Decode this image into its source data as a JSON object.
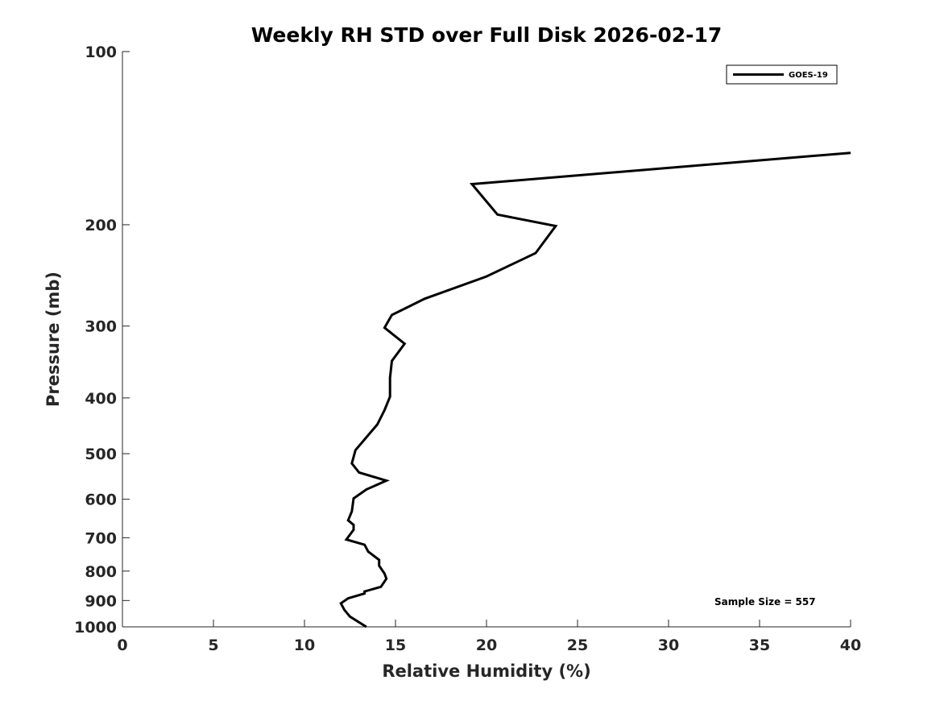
{
  "chart_data": {
    "type": "line",
    "title": "Weekly RH STD over Full Disk 2026-02-17",
    "xlabel": "Relative Humidity (%)",
    "ylabel": "Pressure (mb)",
    "xlim": [
      0,
      40
    ],
    "ylim": [
      100,
      1000
    ],
    "yscale": "log",
    "y_reversed": true,
    "grid": false,
    "legend_position": "top-right",
    "xticks": [
      "0",
      "5",
      "10",
      "15",
      "20",
      "25",
      "30",
      "35",
      "40"
    ],
    "yticks": [
      "100",
      "200",
      "300",
      "400",
      "500",
      "600",
      "700",
      "800",
      "900",
      "1000"
    ],
    "series": [
      {
        "name": "GOES-19",
        "color": "#000000",
        "points": [
          [
            40.0,
            150
          ],
          [
            19.2,
            170
          ],
          [
            20.6,
            192
          ],
          [
            23.8,
            201
          ],
          [
            22.7,
            224
          ],
          [
            20.0,
            246
          ],
          [
            16.6,
            269
          ],
          [
            14.8,
            287
          ],
          [
            14.4,
            302
          ],
          [
            15.5,
            322
          ],
          [
            14.8,
            345
          ],
          [
            14.7,
            369
          ],
          [
            14.7,
            398
          ],
          [
            14.4,
            420
          ],
          [
            14.0,
            445
          ],
          [
            12.8,
            493
          ],
          [
            12.6,
            520
          ],
          [
            13.0,
            539
          ],
          [
            14.5,
            557
          ],
          [
            13.4,
            577
          ],
          [
            12.7,
            598
          ],
          [
            12.6,
            630
          ],
          [
            12.4,
            653
          ],
          [
            12.7,
            665
          ],
          [
            12.7,
            678
          ],
          [
            12.3,
            705
          ],
          [
            13.3,
            720
          ],
          [
            13.5,
            740
          ],
          [
            14.1,
            765
          ],
          [
            14.1,
            783
          ],
          [
            14.4,
            808
          ],
          [
            14.5,
            825
          ],
          [
            14.2,
            852
          ],
          [
            13.3,
            868
          ],
          [
            13.3,
            875
          ],
          [
            12.4,
            892
          ],
          [
            12.0,
            910
          ],
          [
            12.2,
            935
          ],
          [
            12.5,
            960
          ],
          [
            13.4,
            1000
          ]
        ]
      }
    ],
    "annotations": [
      "Sample Size = 557"
    ]
  }
}
